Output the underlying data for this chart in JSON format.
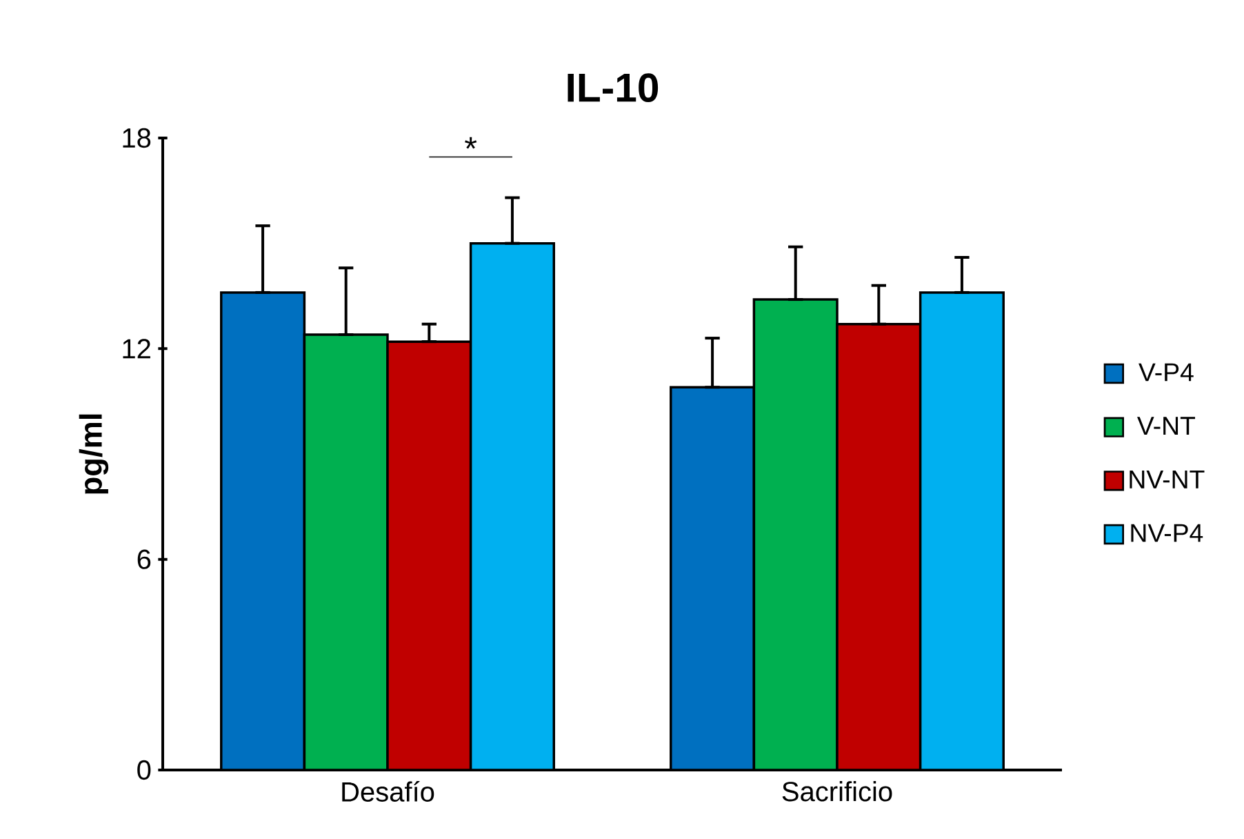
{
  "chart_data": {
    "type": "bar",
    "title": "IL-10",
    "ylabel": "pg/ml",
    "categories": [
      "Desafío",
      "Sacrificio"
    ],
    "series": [
      {
        "name": "V-P4",
        "color": "#0070c0",
        "values": [
          13.6,
          10.9
        ],
        "errors": [
          [
            13.6,
            15.5
          ],
          [
            10.9,
            12.3
          ]
        ]
      },
      {
        "name": "V-NT",
        "color": "#00b050",
        "values": [
          12.4,
          13.4
        ],
        "errors": [
          [
            12.4,
            14.3
          ],
          [
            13.4,
            14.9
          ]
        ]
      },
      {
        "name": "NV-NT",
        "color": "#c00000",
        "values": [
          12.2,
          12.7
        ],
        "errors": [
          [
            12.2,
            12.7
          ],
          [
            12.7,
            13.8
          ]
        ]
      },
      {
        "name": "NV-P4",
        "color": "#00b0f0",
        "values": [
          15.0,
          13.6
        ],
        "errors": [
          [
            15.0,
            16.3
          ],
          [
            13.6,
            14.6
          ]
        ]
      }
    ],
    "ylim": [
      0,
      18
    ],
    "yticks": [
      0,
      6,
      12,
      18
    ],
    "grid": false,
    "legend": "right",
    "annotations": [
      "*"
    ]
  }
}
